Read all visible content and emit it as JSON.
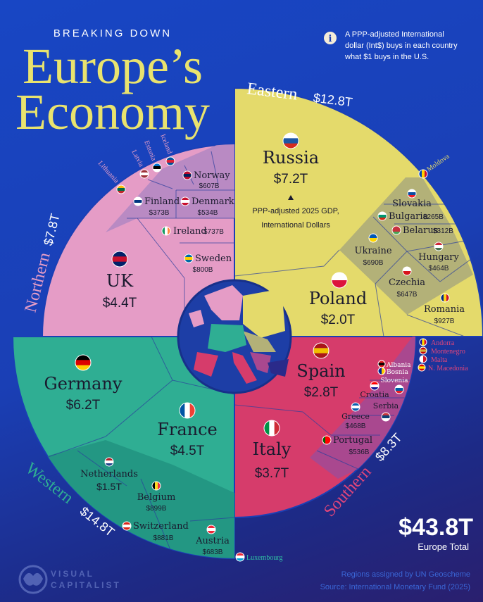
{
  "header": {
    "kicker": "BREAKING DOWN",
    "title_line1": "Europe’s",
    "title_line2": "Economy"
  },
  "info_note": {
    "icon": "info-icon",
    "lines": [
      "A PPP-adjusted International",
      "dollar (Int$) buys in each country",
      "what $1 buys in the U.S."
    ]
  },
  "center_note": {
    "lines": [
      "PPP-adjusted 2025 GDP,",
      "International Dollars"
    ]
  },
  "total": {
    "value": "$43.8T",
    "label": "Europe Total"
  },
  "footer": {
    "lines": [
      "Regions assigned by UN Geoscheme",
      "Source: International Monetary Fund (2025)"
    ],
    "logo_line1": "VISUAL",
    "logo_line2": "CAPITALIST"
  },
  "colors": {
    "eastern": "#e4da6b",
    "eastern_small": "#b3b178",
    "northern": "#e59cc6",
    "northern_small": "#b98ac3",
    "western": "#2fae93",
    "western_small": "#239783",
    "southern": "#d63c6b",
    "southern_small": "#a9488f",
    "title": "#e9e36e"
  },
  "chart_data": {
    "type": "pie",
    "units": "PPP-adjusted 2025 GDP, International Dollars (Int$)",
    "total": "$43.8T",
    "regions": [
      {
        "name": "Eastern",
        "total": "$12.8T",
        "countries": [
          {
            "name": "Russia",
            "label": "$7.2T",
            "value_bn": 7200,
            "flag": {
              "d": "h",
              "c": [
                "#ffffff",
                "#1c57a5",
                "#d52b1e"
              ]
            }
          },
          {
            "name": "Poland",
            "label": "$2.0T",
            "value_bn": 2000,
            "flag": {
              "d": "h",
              "c": [
                "#ffffff",
                "#dc143c"
              ]
            }
          },
          {
            "name": "Romania",
            "label": "$927B",
            "value_bn": 927,
            "flag": {
              "d": "v",
              "c": [
                "#002b7f",
                "#fcd116",
                "#ce1126"
              ]
            }
          },
          {
            "name": "Ukraine",
            "label": "$690B",
            "value_bn": 690,
            "flag": {
              "d": "h",
              "c": [
                "#0057b7",
                "#ffd700"
              ]
            }
          },
          {
            "name": "Czechia",
            "label": "$647B",
            "value_bn": 647,
            "flag": {
              "d": "h",
              "c": [
                "#ffffff",
                "#d7141a"
              ]
            }
          },
          {
            "name": "Hungary",
            "label": "$464B",
            "value_bn": 464,
            "flag": {
              "d": "h",
              "c": [
                "#ce2939",
                "#ffffff",
                "#477050"
              ]
            }
          },
          {
            "name": "Belarus",
            "label": "$312B",
            "value_bn": 312,
            "flag": {
              "d": "h",
              "c": [
                "#c8313e",
                "#c8313e",
                "#4aa657"
              ]
            }
          },
          {
            "name": "Bulgaria",
            "label": "$265B",
            "value_bn": 265,
            "flag": {
              "d": "h",
              "c": [
                "#ffffff",
                "#00966e",
                "#d62612"
              ]
            }
          },
          {
            "name": "Slovakia",
            "flag": {
              "d": "h",
              "c": [
                "#ffffff",
                "#0b4ea2",
                "#ee1c25"
              ]
            }
          },
          {
            "name": "Moldova",
            "flag": {
              "d": "v",
              "c": [
                "#0046ae",
                "#ffd200",
                "#cc092f"
              ]
            }
          }
        ]
      },
      {
        "name": "Northern",
        "total": "$7.8T",
        "countries": [
          {
            "name": "UK",
            "label": "$4.4T",
            "value_bn": 4400,
            "flag": {
              "d": "h",
              "c": [
                "#012169",
                "#c8102e",
                "#012169"
              ]
            }
          },
          {
            "name": "Sweden",
            "label": "$800B",
            "value_bn": 800,
            "flag": {
              "d": "h",
              "c": [
                "#006aa7",
                "#fecc00",
                "#006aa7"
              ]
            }
          },
          {
            "name": "Ireland",
            "label": "$737B",
            "value_bn": 737,
            "flag": {
              "d": "v",
              "c": [
                "#169b62",
                "#ffffff",
                "#ff883e"
              ]
            }
          },
          {
            "name": "Norway",
            "label": "$607B",
            "value_bn": 607,
            "flag": {
              "d": "h",
              "c": [
                "#ba0c2f",
                "#00205b",
                "#ba0c2f"
              ]
            }
          },
          {
            "name": "Denmark",
            "label": "$534B",
            "value_bn": 534,
            "flag": {
              "d": "h",
              "c": [
                "#c8102e",
                "#ffffff",
                "#c8102e"
              ]
            }
          },
          {
            "name": "Finland",
            "label": "$373B",
            "value_bn": 373,
            "flag": {
              "d": "h",
              "c": [
                "#ffffff",
                "#003580",
                "#ffffff"
              ]
            }
          },
          {
            "name": "Lithuania",
            "flag": {
              "d": "h",
              "c": [
                "#fdb913",
                "#006a44",
                "#c1272d"
              ]
            }
          },
          {
            "name": "Latvia",
            "flag": {
              "d": "h",
              "c": [
                "#9e3039",
                "#ffffff",
                "#9e3039"
              ]
            }
          },
          {
            "name": "Estonia",
            "flag": {
              "d": "h",
              "c": [
                "#0072ce",
                "#000000",
                "#ffffff"
              ]
            }
          },
          {
            "name": "Iceland",
            "flag": {
              "d": "h",
              "c": [
                "#02529c",
                "#dc1e35",
                "#02529c"
              ]
            }
          }
        ]
      },
      {
        "name": "Western",
        "total": "$14.8T",
        "countries": [
          {
            "name": "Germany",
            "label": "$6.2T",
            "value_bn": 6200,
            "flag": {
              "d": "h",
              "c": [
                "#000000",
                "#dd0000",
                "#ffce00"
              ]
            }
          },
          {
            "name": "France",
            "label": "$4.5T",
            "value_bn": 4500,
            "flag": {
              "d": "v",
              "c": [
                "#0055a4",
                "#ffffff",
                "#ef4135"
              ]
            }
          },
          {
            "name": "Netherlands",
            "label": "$1.5T",
            "value_bn": 1500,
            "flag": {
              "d": "h",
              "c": [
                "#ae1c28",
                "#ffffff",
                "#21468b"
              ]
            }
          },
          {
            "name": "Belgium",
            "label": "$899B",
            "value_bn": 899,
            "flag": {
              "d": "v",
              "c": [
                "#000000",
                "#fdda24",
                "#ef3340"
              ]
            }
          },
          {
            "name": "Switzerland",
            "label": "$881B",
            "value_bn": 881,
            "flag": {
              "d": "h",
              "c": [
                "#da291c",
                "#ffffff",
                "#da291c"
              ]
            }
          },
          {
            "name": "Austria",
            "label": "$683B",
            "value_bn": 683,
            "flag": {
              "d": "h",
              "c": [
                "#ed2939",
                "#ffffff",
                "#ed2939"
              ]
            }
          },
          {
            "name": "Luxembourg",
            "flag": {
              "d": "h",
              "c": [
                "#ed2939",
                "#ffffff",
                "#00a1de"
              ]
            }
          }
        ]
      },
      {
        "name": "Southern",
        "total": "$8.3T",
        "countries": [
          {
            "name": "Italy",
            "label": "$3.7T",
            "value_bn": 3700,
            "flag": {
              "d": "v",
              "c": [
                "#009246",
                "#ffffff",
                "#ce2b37"
              ]
            }
          },
          {
            "name": "Spain",
            "label": "$2.8T",
            "value_bn": 2800,
            "flag": {
              "d": "h",
              "c": [
                "#aa151b",
                "#f1bf00",
                "#aa151b"
              ]
            }
          },
          {
            "name": "Portugal",
            "label": "$536B",
            "value_bn": 536,
            "flag": {
              "d": "v",
              "c": [
                "#006600",
                "#ff0000",
                "#ff0000"
              ]
            }
          },
          {
            "name": "Greece",
            "label": "$468B",
            "value_bn": 468,
            "flag": {
              "d": "h",
              "c": [
                "#0d5eaf",
                "#ffffff",
                "#0d5eaf"
              ]
            }
          },
          {
            "name": "Serbia",
            "flag": {
              "d": "h",
              "c": [
                "#c6363c",
                "#0c4076",
                "#ffffff"
              ]
            }
          },
          {
            "name": "Croatia",
            "flag": {
              "d": "h",
              "c": [
                "#ff0000",
                "#ffffff",
                "#171796"
              ]
            }
          },
          {
            "name": "Slovenia",
            "flag": {
              "d": "h",
              "c": [
                "#ffffff",
                "#005da4",
                "#ed1c24"
              ]
            }
          },
          {
            "name": "Bosnia",
            "flag": {
              "d": "v",
              "c": [
                "#002395",
                "#fecb00"
              ]
            }
          },
          {
            "name": "Albania",
            "flag": {
              "d": "h",
              "c": [
                "#e41e20",
                "#000000",
                "#e41e20"
              ]
            }
          },
          {
            "name": "Andorra",
            "flag": {
              "d": "v",
              "c": [
                "#10069f",
                "#fedf00",
                "#d50032"
              ]
            }
          },
          {
            "name": "Montenegro",
            "flag": {
              "d": "h",
              "c": [
                "#c40308",
                "#d4af3a",
                "#c40308"
              ]
            }
          },
          {
            "name": "Malta",
            "flag": {
              "d": "v",
              "c": [
                "#ffffff",
                "#cf142b"
              ]
            }
          },
          {
            "name": "N. Macedonia",
            "flag": {
              "d": "h",
              "c": [
                "#d20000",
                "#ffe600",
                "#d20000"
              ]
            }
          }
        ]
      }
    ]
  }
}
